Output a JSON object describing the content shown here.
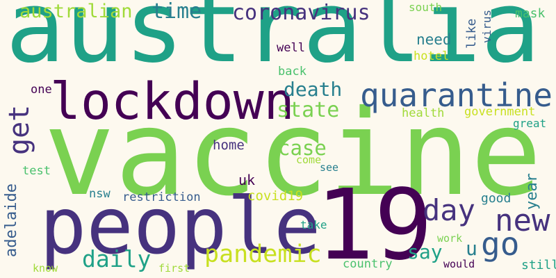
{
  "palette": {
    "background": "#fdf9ef",
    "dark_purple": "#440154",
    "indigo": "#46327e",
    "blue": "#365c8d",
    "teal_blue": "#277f8e",
    "teal": "#1fa187",
    "green": "#4ac16d",
    "lime": "#7ad151",
    "yellow_green": "#a0da39",
    "yellow": "#c8e020"
  },
  "words": {
    "australia": "australia",
    "vaccine": "vaccine",
    "people": "people",
    "n19": "19",
    "lockdown": "lockdown",
    "quarantine": "quarantine",
    "coronavirus": "coronavirus",
    "australian": "australian",
    "time": "time",
    "get": "get",
    "new": "new",
    "day": "day",
    "go": "go",
    "pandemic": "pandemic",
    "daily": "daily",
    "state": "state",
    "death": "death",
    "case": "case",
    "adelaide": "adelaide",
    "year": "year",
    "say": "say",
    "u": "u",
    "home": "home",
    "need": "need",
    "hotel": "hotel",
    "health": "health",
    "government": "government",
    "great": "great",
    "covid19": "covid19",
    "restriction": "restriction",
    "nsw": "nsw",
    "uk": "uk",
    "come": "come",
    "see": "see",
    "test": "test",
    "one": "one",
    "back": "back",
    "well": "well",
    "like": "like",
    "virus": "virus",
    "south": "south",
    "mask": "mask",
    "good": "good",
    "take": "take",
    "work": "work",
    "would": "would",
    "still": "still",
    "country": "country",
    "know": "know",
    "first": "first"
  }
}
